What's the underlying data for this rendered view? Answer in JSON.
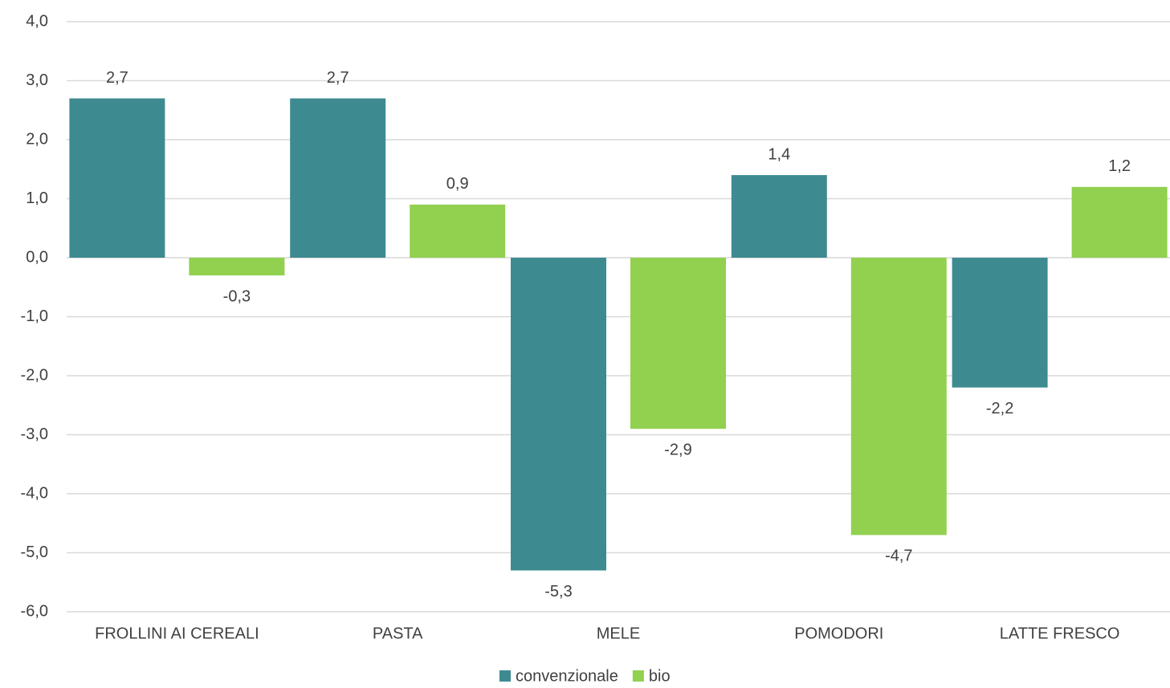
{
  "chart_data": {
    "type": "bar",
    "categories": [
      "FROLLINI AI CEREALI",
      "PASTA",
      "MELE",
      "POMODORI",
      "LATTE FRESCO"
    ],
    "series": [
      {
        "name": "convenzionale",
        "color": "#3d8b91",
        "values": [
          2.7,
          2.7,
          -5.3,
          1.4,
          -2.2
        ],
        "value_labels": [
          "2,7",
          "2,7",
          "-5,3",
          "1,4",
          "-2,2"
        ]
      },
      {
        "name": "bio",
        "color": "#92d050",
        "values": [
          -0.3,
          0.9,
          -2.9,
          -4.7,
          1.2
        ],
        "value_labels": [
          "-0,3",
          "0,9",
          "-2,9",
          "-4,7",
          "1,2"
        ]
      }
    ],
    "ylim": [
      -6,
      4
    ],
    "yticks": [
      {
        "value": 4,
        "label": "4,0"
      },
      {
        "value": 3,
        "label": "3,0"
      },
      {
        "value": 2,
        "label": "2,0"
      },
      {
        "value": 1,
        "label": "1,0"
      },
      {
        "value": 0,
        "label": "0,0"
      },
      {
        "value": -1,
        "label": "-1,0"
      },
      {
        "value": -2,
        "label": "-2,0"
      },
      {
        "value": -3,
        "label": "-3,0"
      },
      {
        "value": -4,
        "label": "-4,0"
      },
      {
        "value": -5,
        "label": "-5,0"
      },
      {
        "value": -6,
        "label": "-6,0"
      }
    ],
    "grid": true,
    "legend": "bottom"
  }
}
